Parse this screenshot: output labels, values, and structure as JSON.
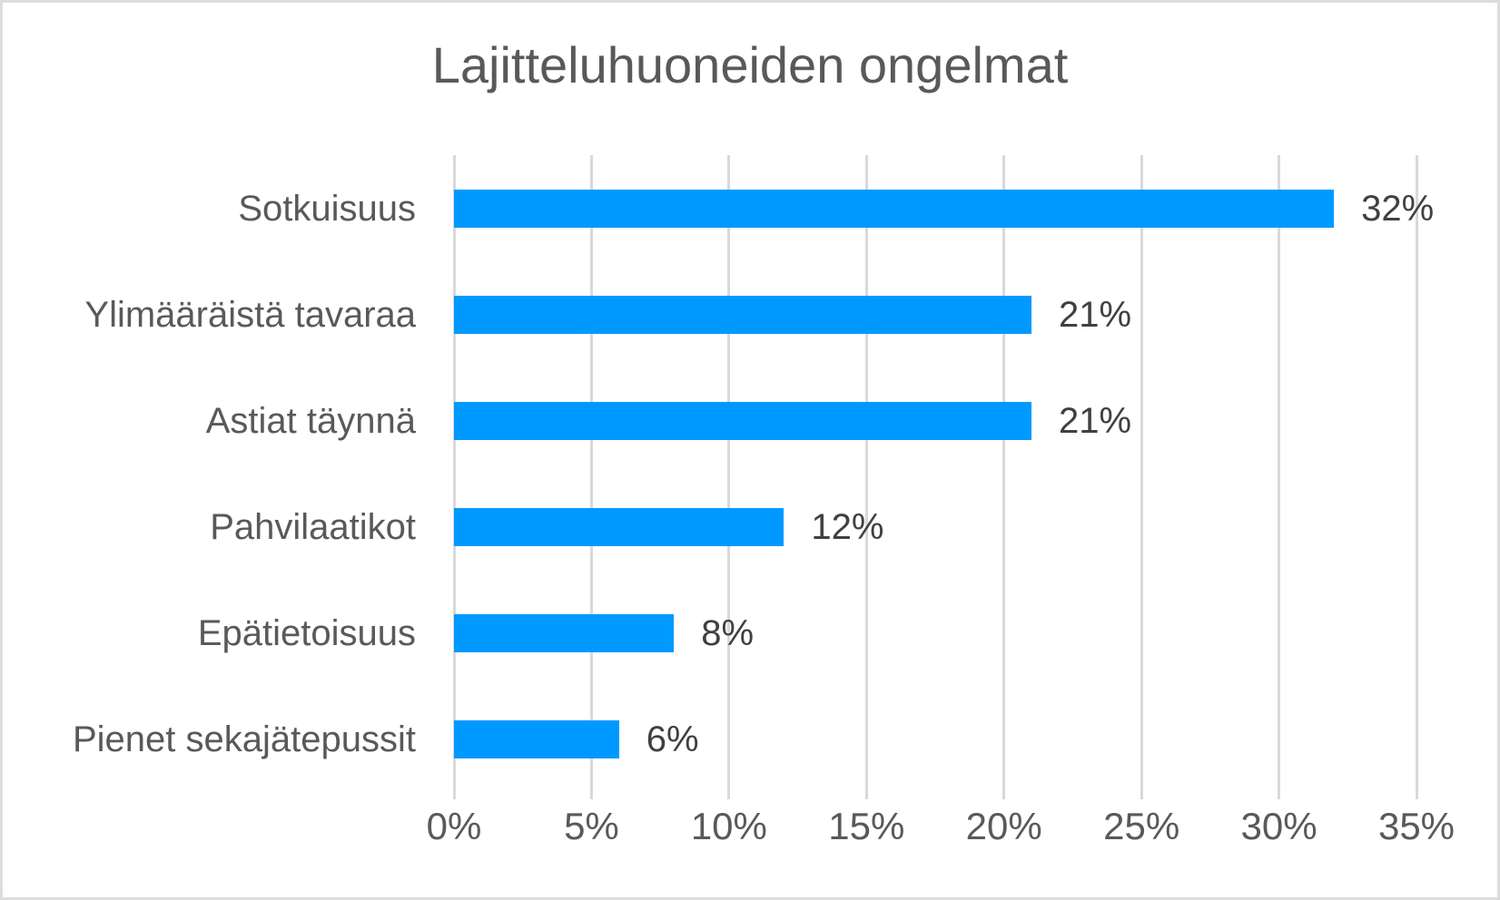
{
  "window": {
    "background_color": "#ffffff",
    "frame_border_color": "#dcdcdc"
  },
  "chart_data": {
    "type": "bar",
    "orientation": "horizontal",
    "title": "Lajitteluhuoneiden ongelmat",
    "categories": [
      "Sotkuisuus",
      "Ylimääräistä tavaraa",
      "Astiat täynnä",
      "Pahvilaatikot",
      "Epätietoisuus",
      "Pienet sekajätepussit"
    ],
    "values": [
      32,
      21,
      21,
      12,
      8,
      6
    ],
    "data_labels": [
      "32%",
      "21%",
      "21%",
      "12%",
      "8%",
      "6%"
    ],
    "x_tick_labels": [
      "0%",
      "5%",
      "10%",
      "15%",
      "20%",
      "25%",
      "30%",
      "35%"
    ],
    "xlim": [
      0,
      35
    ],
    "xlabel": "",
    "ylabel": "",
    "grid": true,
    "legend": false,
    "bar_color": "#0099ff",
    "gridline_color": "#d9d9d9",
    "title_color": "#595959",
    "axis_text_color": "#595959",
    "data_label_color": "#404040"
  }
}
